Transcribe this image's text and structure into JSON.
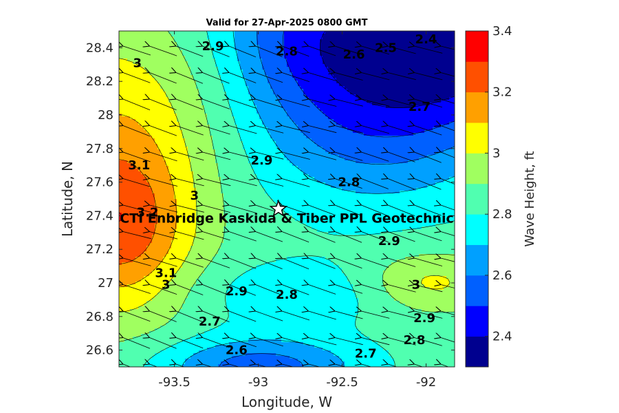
{
  "chart_data": {
    "type": "contour",
    "title": "Valid for 27-Apr-2025 0800 GMT",
    "xlabel": "Longitude, W",
    "ylabel": "Latitude, N",
    "colorbar_label": "Wave Height, ft",
    "xlim": [
      -93.83,
      -91.83
    ],
    "ylim": [
      26.5,
      28.5
    ],
    "x_ticks": [
      -93.5,
      -93,
      -92.5,
      -92
    ],
    "x_tick_labels": [
      "-93.5",
      "-93",
      "-92.5",
      "-92"
    ],
    "y_ticks": [
      26.6,
      26.8,
      27,
      27.2,
      27.4,
      27.6,
      27.8,
      28,
      28.2,
      28.4
    ],
    "y_tick_labels": [
      "26.6",
      "26.8",
      "27",
      "27.2",
      "27.4",
      "27.6",
      "27.8",
      "28",
      "28.2",
      "28.4"
    ],
    "clim": [
      2.3,
      3.4
    ],
    "colorbar_ticks": [
      2.4,
      2.6,
      2.8,
      3,
      3.2,
      3.4
    ],
    "colorbar_tick_labels": [
      "2.4",
      "2.6",
      "2.8",
      "3",
      "3.2",
      "3.4"
    ],
    "colormap": [
      "#00008f",
      "#0000ff",
      "#0060ff",
      "#00a0ff",
      "#00ffff",
      "#50ffb0",
      "#a0ff60",
      "#ffff00",
      "#ffa000",
      "#ff5000",
      "#ff0000"
    ],
    "levels": [
      2.3,
      2.4,
      2.5,
      2.6,
      2.7,
      2.8,
      2.9,
      3.0,
      3.1,
      3.2,
      3.3,
      3.4
    ],
    "contour_labels": [
      {
        "text": "3.2",
        "lon": -93.66,
        "lat": 27.42
      },
      {
        "text": "3.1",
        "lon": -93.71,
        "lat": 27.7
      },
      {
        "text": "3.1",
        "lon": -93.55,
        "lat": 27.06
      },
      {
        "text": "3",
        "lon": -93.72,
        "lat": 28.31
      },
      {
        "text": "3",
        "lon": -93.38,
        "lat": 27.52
      },
      {
        "text": "3",
        "lon": -93.55,
        "lat": 26.99
      },
      {
        "text": "3",
        "lon": -92.06,
        "lat": 26.99
      },
      {
        "text": "2.9",
        "lon": -93.27,
        "lat": 28.41
      },
      {
        "text": "2.9",
        "lon": -92.98,
        "lat": 27.73
      },
      {
        "text": "2.9",
        "lon": -93.13,
        "lat": 26.95
      },
      {
        "text": "2.9",
        "lon": -92.22,
        "lat": 27.25
      },
      {
        "text": "2.9",
        "lon": -92.01,
        "lat": 26.79
      },
      {
        "text": "2.8",
        "lon": -92.83,
        "lat": 28.38
      },
      {
        "text": "2.8",
        "lon": -92.46,
        "lat": 27.6
      },
      {
        "text": "2.8",
        "lon": -92.83,
        "lat": 26.93
      },
      {
        "text": "2.8",
        "lon": -92.07,
        "lat": 26.66
      },
      {
        "text": "2.7",
        "lon": -92.04,
        "lat": 28.05
      },
      {
        "text": "2.7",
        "lon": -93.29,
        "lat": 26.77
      },
      {
        "text": "2.7",
        "lon": -92.36,
        "lat": 26.58
      },
      {
        "text": "2.6",
        "lon": -92.43,
        "lat": 28.36
      },
      {
        "text": "2.6",
        "lon": -93.13,
        "lat": 26.6
      },
      {
        "text": "2.5",
        "lon": -92.24,
        "lat": 28.4
      },
      {
        "text": "2.4",
        "lon": -92.0,
        "lat": 28.45
      }
    ],
    "station": {
      "label": "CTI Enbridge  Kaskida & Tiber PPL Geotechnic",
      "lon": -92.88,
      "lat": 27.44
    }
  }
}
